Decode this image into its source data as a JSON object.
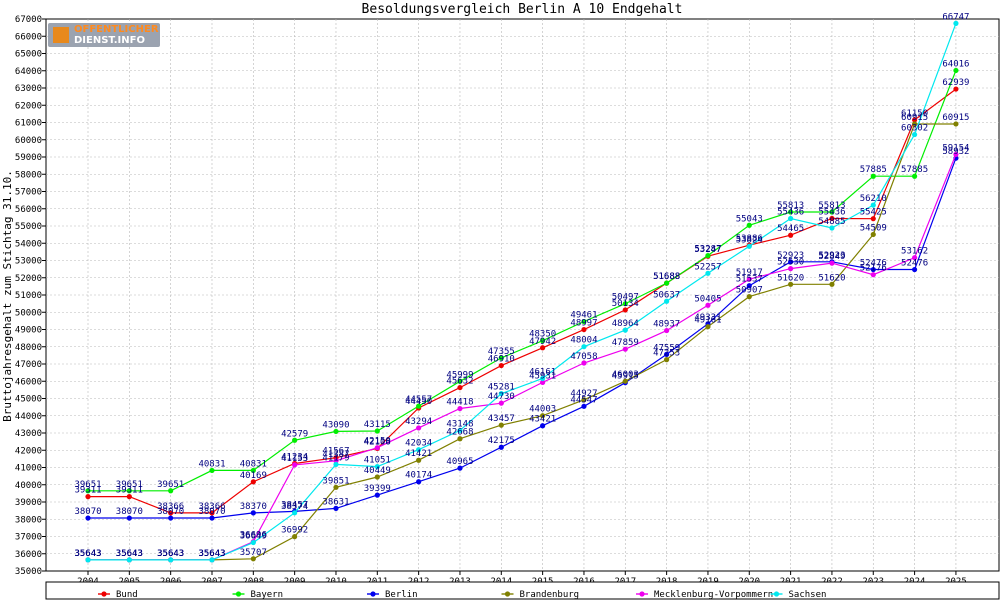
{
  "logo": {
    "line1": "OFFENTLICHER",
    "line2": "DIENST.INFO"
  },
  "chart_data": {
    "type": "line",
    "title": "Besoldungsvergleich Berlin A 10 Endgehalt",
    "ylabel": "Bruttojahresgehalt zum Stichtag 31.10.",
    "xlabel": "",
    "ylim": [
      35000,
      67000
    ],
    "ytick_step": 1000,
    "grid": true,
    "legend_position": "bottom",
    "x": [
      "2004",
      "2005",
      "2006",
      "2007",
      "2008",
      "2009",
      "2010",
      "2011",
      "2012",
      "2013",
      "2014",
      "2015",
      "2016",
      "2017",
      "2018",
      "2019",
      "2020",
      "2021",
      "2022",
      "2023",
      "2024",
      "2025"
    ],
    "series": [
      {
        "name": "Bund",
        "color": "#ee0000",
        "values": [
          39311,
          39311,
          38366,
          38366,
          40169,
          41234,
          41567,
          42108,
          44450,
          45632,
          46910,
          47942,
          48997,
          50134,
          51688,
          53247,
          53886,
          54465,
          55436,
          55425,
          61150,
          62939
        ]
      },
      {
        "name": "Bayern",
        "color": "#00ee00",
        "values": [
          39651,
          39651,
          39651,
          40831,
          40831,
          42579,
          43090,
          43115,
          44557,
          45999,
          47355,
          48350,
          49461,
          50497,
          51688,
          53287,
          55043,
          55813,
          55813,
          57885,
          57885,
          64016
        ]
      },
      {
        "name": "Berlin",
        "color": "#0000ee",
        "values": [
          38070,
          38070,
          38070,
          38070,
          38370,
          38457,
          38631,
          39399,
          40174,
          40965,
          42175,
          43421,
          44547,
          45915,
          47559,
          49331,
          51537,
          52923,
          52923,
          52476,
          52476,
          58932
        ]
      },
      {
        "name": "Brandenburg",
        "color": "#808000",
        "values": [
          35643,
          35643,
          35643,
          35643,
          35707,
          36992,
          39851,
          40449,
          41421,
          42668,
          43457,
          44003,
          44927,
          46003,
          47253,
          49161,
          50907,
          51620,
          51620,
          54509,
          60915,
          60915
        ]
      },
      {
        "name": "Mecklenburg-Vorpommern",
        "color": "#ee00ee",
        "values": [
          35643,
          35643,
          35643,
          35643,
          36696,
          41153,
          41387,
          42150,
          43294,
          44418,
          44730,
          45931,
          47058,
          47859,
          48937,
          50405,
          51917,
          52530,
          52849,
          52176,
          53162,
          59154
        ]
      },
      {
        "name": "Sachsen",
        "color": "#00e8ee",
        "values": [
          35643,
          35643,
          35643,
          35643,
          36649,
          38374,
          41179,
          41051,
          42034,
          43148,
          45281,
          46161,
          48004,
          48964,
          50637,
          52257,
          53824,
          55436,
          54885,
          56210,
          60302,
          66747
        ]
      }
    ]
  }
}
